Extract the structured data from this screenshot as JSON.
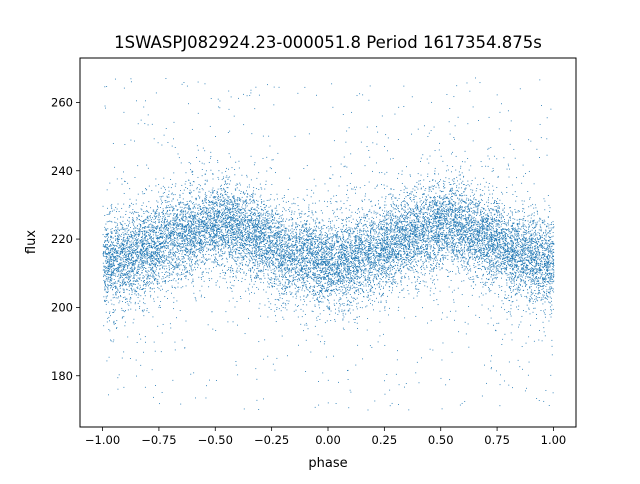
{
  "chart_data": {
    "type": "scatter",
    "title": "1SWASPJ082924.23-000051.8 Period 1617354.875s",
    "xlabel": "phase",
    "ylabel": "flux",
    "xlim": [
      -1.1,
      1.1
    ],
    "ylim": [
      165,
      273
    ],
    "xticks": [
      -1.0,
      -0.75,
      -0.5,
      -0.25,
      0.0,
      0.25,
      0.5,
      0.75,
      1.0
    ],
    "xtick_labels": [
      "−1.00",
      "−0.75",
      "−0.50",
      "−0.25",
      "0.00",
      "0.25",
      "0.50",
      "0.75",
      "1.00"
    ],
    "yticks": [
      180,
      200,
      220,
      240,
      260
    ],
    "ytick_labels": [
      "180",
      "200",
      "220",
      "240",
      "260"
    ],
    "grid": false,
    "legend": "none",
    "series": [
      {
        "color": "#1f77b4",
        "point_count": 16000,
        "phase_range": [
          -1.0,
          1.0
        ],
        "approx_profile": {
          "phase": [
            -1.0,
            -0.9,
            -0.8,
            -0.75,
            -0.7,
            -0.6,
            -0.5,
            -0.45,
            -0.4,
            -0.3,
            -0.25,
            -0.2,
            -0.1,
            0.0,
            0.1,
            0.2,
            0.25,
            0.3,
            0.4,
            0.5,
            0.55,
            0.6,
            0.7,
            0.75,
            0.8,
            0.9,
            1.0
          ],
          "median_flux": [
            213,
            214,
            217,
            219,
            221,
            222,
            224,
            225,
            223,
            220,
            218,
            216,
            215,
            213,
            214,
            216,
            218,
            220,
            222,
            224,
            225,
            223,
            220,
            219,
            217,
            215,
            213
          ],
          "scatter_core": 6,
          "outlier_range": [
            170,
            268
          ]
        }
      }
    ]
  }
}
